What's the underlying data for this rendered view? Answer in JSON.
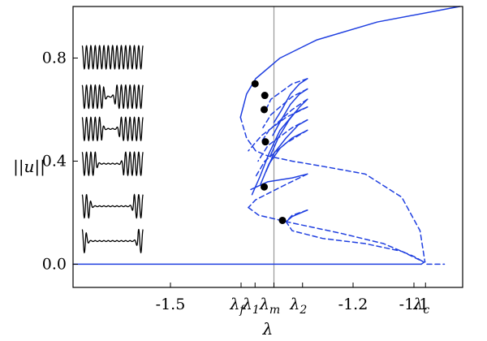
{
  "chart_data": {
    "type": "line",
    "title": "",
    "xlabel": "λ",
    "ylabel": "||u||",
    "xlim": [
      -1.66,
      -1.02
    ],
    "ylim": [
      -0.09,
      1.0
    ],
    "grid": false,
    "legend": "none",
    "colors": {
      "branch": "#1f3fe0",
      "axis": "#000000",
      "marker_line": "#999999",
      "dot": "#000000",
      "inset": "#000000"
    },
    "xticks": [
      {
        "value": -1.5,
        "label": "-1.5"
      },
      {
        "value": -1.2,
        "label": "-1.2"
      },
      {
        "value": -1.1,
        "label": "-1.1"
      }
    ],
    "xticks_special": [
      {
        "value": -1.384,
        "base": "λ",
        "sub": "f"
      },
      {
        "value": -1.361,
        "base": "λ",
        "sub": "1"
      },
      {
        "value": -1.33,
        "base": "λ",
        "sub": "m"
      },
      {
        "value": -1.283,
        "base": "λ",
        "sub": "2"
      },
      {
        "value": -1.081,
        "base": "λ",
        "sub": "c"
      }
    ],
    "yticks": [
      {
        "value": 0.0,
        "label": "0.0"
      },
      {
        "value": 0.4,
        "label": "0.4"
      },
      {
        "value": 0.8,
        "label": "0.8"
      }
    ],
    "vline_x": -1.33,
    "series": [
      {
        "style": "solid",
        "points": [
          [
            -1.66,
            0
          ],
          [
            -1.088,
            0
          ]
        ]
      },
      {
        "style": "dashed",
        "points": [
          [
            -1.088,
            0
          ],
          [
            -1.082,
            0.01
          ],
          [
            -1.08,
            0
          ],
          [
            -1.05,
            0
          ]
        ]
      },
      {
        "style": "solid",
        "points": [
          [
            -1.025,
            1.0
          ],
          [
            -1.16,
            0.94
          ],
          [
            -1.26,
            0.87
          ],
          [
            -1.32,
            0.8
          ],
          [
            -1.36,
            0.72
          ],
          [
            -1.375,
            0.66
          ],
          [
            -1.385,
            0.57
          ]
        ]
      },
      {
        "style": "dashed",
        "points": [
          [
            -1.385,
            0.57
          ],
          [
            -1.375,
            0.49
          ],
          [
            -1.36,
            0.44
          ],
          [
            -1.34,
            0.42
          ],
          [
            -1.3,
            0.4
          ],
          [
            -1.25,
            0.38
          ],
          [
            -1.18,
            0.35
          ],
          [
            -1.12,
            0.26
          ],
          [
            -1.09,
            0.13
          ],
          [
            -1.082,
            0.01
          ]
        ]
      },
      {
        "style": "solid",
        "points": [
          [
            -1.366,
            0.27
          ],
          [
            -1.353,
            0.34
          ],
          [
            -1.338,
            0.43
          ],
          [
            -1.32,
            0.52
          ],
          [
            -1.295,
            0.59
          ],
          [
            -1.275,
            0.61
          ]
        ]
      },
      {
        "style": "solid",
        "points": [
          [
            -1.352,
            0.31
          ],
          [
            -1.338,
            0.39
          ],
          [
            -1.32,
            0.45
          ],
          [
            -1.3,
            0.49
          ],
          [
            -1.275,
            0.52
          ]
        ]
      },
      {
        "style": "solid",
        "points": [
          [
            -1.343,
            0.36
          ],
          [
            -1.33,
            0.43
          ],
          [
            -1.31,
            0.49
          ],
          [
            -1.29,
            0.54
          ],
          [
            -1.275,
            0.56
          ]
        ]
      },
      {
        "style": "solid",
        "points": [
          [
            -1.336,
            0.42
          ],
          [
            -1.323,
            0.49
          ],
          [
            -1.305,
            0.56
          ],
          [
            -1.288,
            0.61
          ],
          [
            -1.275,
            0.64
          ]
        ]
      },
      {
        "style": "solid",
        "points": [
          [
            -1.332,
            0.5
          ],
          [
            -1.318,
            0.56
          ],
          [
            -1.303,
            0.62
          ],
          [
            -1.288,
            0.66
          ],
          [
            -1.275,
            0.68
          ]
        ]
      },
      {
        "style": "solid",
        "points": [
          [
            -1.33,
            0.55
          ],
          [
            -1.317,
            0.6
          ],
          [
            -1.303,
            0.66
          ],
          [
            -1.288,
            0.7
          ],
          [
            -1.275,
            0.72
          ]
        ]
      },
      {
        "style": "dashed",
        "points": [
          [
            -1.275,
            0.72
          ],
          [
            -1.3,
            0.7
          ],
          [
            -1.335,
            0.64
          ],
          [
            -1.345,
            0.59
          ]
        ]
      },
      {
        "style": "dashed",
        "points": [
          [
            -1.275,
            0.68
          ],
          [
            -1.3,
            0.65
          ],
          [
            -1.335,
            0.58
          ],
          [
            -1.348,
            0.53
          ]
        ]
      },
      {
        "style": "dashed",
        "points": [
          [
            -1.275,
            0.64
          ],
          [
            -1.3,
            0.6
          ],
          [
            -1.338,
            0.52
          ],
          [
            -1.352,
            0.47
          ]
        ]
      },
      {
        "style": "dashed",
        "points": [
          [
            -1.275,
            0.56
          ],
          [
            -1.3,
            0.53
          ],
          [
            -1.34,
            0.46
          ],
          [
            -1.356,
            0.4
          ]
        ]
      },
      {
        "style": "dashed",
        "points": [
          [
            -1.275,
            0.52
          ],
          [
            -1.31,
            0.47
          ],
          [
            -1.345,
            0.4
          ],
          [
            -1.36,
            0.34
          ]
        ]
      },
      {
        "style": "dashed",
        "points": [
          [
            -1.275,
            0.61
          ],
          [
            -1.31,
            0.57
          ],
          [
            -1.35,
            0.5
          ],
          [
            -1.372,
            0.44
          ]
        ]
      },
      {
        "style": "solid",
        "points": [
          [
            -1.368,
            0.29
          ],
          [
            -1.34,
            0.32
          ],
          [
            -1.3,
            0.335
          ],
          [
            -1.275,
            0.35
          ]
        ]
      },
      {
        "style": "dashed",
        "points": [
          [
            -1.275,
            0.35
          ],
          [
            -1.31,
            0.31
          ],
          [
            -1.36,
            0.25
          ],
          [
            -1.372,
            0.22
          ]
        ]
      },
      {
        "style": "solid",
        "points": [
          [
            -1.31,
            0.165
          ],
          [
            -1.3,
            0.185
          ],
          [
            -1.285,
            0.2
          ],
          [
            -1.275,
            0.21
          ]
        ]
      },
      {
        "style": "dashed",
        "points": [
          [
            -1.275,
            0.21
          ],
          [
            -1.3,
            0.19
          ],
          [
            -1.31,
            0.165
          ],
          [
            -1.3,
            0.13
          ],
          [
            -1.25,
            0.1
          ],
          [
            -1.18,
            0.08
          ],
          [
            -1.12,
            0.05
          ],
          [
            -1.085,
            0.01
          ]
        ]
      },
      {
        "style": "dashed",
        "points": [
          [
            -1.372,
            0.22
          ],
          [
            -1.355,
            0.19
          ],
          [
            -1.3,
            0.16
          ],
          [
            -1.22,
            0.12
          ],
          [
            -1.15,
            0.08
          ],
          [
            -1.1,
            0.03
          ],
          [
            -1.085,
            0.01
          ]
        ]
      }
    ],
    "points": [
      [
        -1.361,
        0.7
      ],
      [
        -1.345,
        0.655
      ],
      [
        -1.346,
        0.6
      ],
      [
        -1.344,
        0.475
      ],
      [
        -1.346,
        0.3
      ],
      [
        -1.316,
        0.17
      ]
    ],
    "insets": [
      {
        "y_center": 0.803,
        "x_start": -1.645,
        "x_end": -1.545,
        "zeros_start": 0,
        "zeros_end": 0,
        "amplitude": 0.045,
        "waves": 14
      },
      {
        "y_center": 0.65,
        "x_start": -1.645,
        "x_end": -1.545,
        "zeros_start": 0.35,
        "zeros_end": 0.55,
        "amplitude": 0.045,
        "waves": 14
      },
      {
        "y_center": 0.525,
        "x_start": -1.645,
        "x_end": -1.545,
        "zeros_start": 0.32,
        "zeros_end": 0.62,
        "amplitude": 0.045,
        "waves": 14
      },
      {
        "y_center": 0.39,
        "x_start": -1.645,
        "x_end": -1.545,
        "zeros_start": 0.22,
        "zeros_end": 0.68,
        "amplitude": 0.045,
        "waves": 14
      },
      {
        "y_center": 0.225,
        "x_start": -1.645,
        "x_end": -1.545,
        "zeros_start": 0.12,
        "zeros_end": 0.85,
        "amplitude": 0.045,
        "waves": 14
      },
      {
        "y_center": 0.09,
        "x_start": -1.645,
        "x_end": -1.545,
        "zeros_start": 0.06,
        "zeros_end": 0.92,
        "amplitude": 0.045,
        "waves": 14
      }
    ]
  }
}
